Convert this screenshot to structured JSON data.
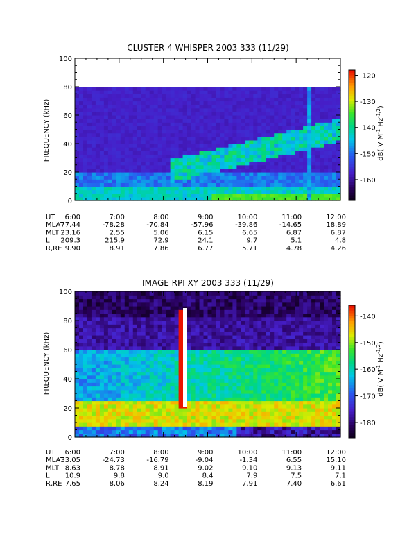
{
  "chart_data": [
    {
      "type": "heatmap",
      "title": "CLUSTER 4 WHISPER 2003 333 (11/29)",
      "ylabel": "FREQUENCY (kHz)",
      "ylim": [
        0,
        100
      ],
      "y_ticks": [
        "0",
        "20",
        "40",
        "60",
        "80",
        "100"
      ],
      "x_ticks": [
        "6:00",
        "7:00",
        "8:00",
        "9:00",
        "10:00",
        "11:00",
        "12:00"
      ],
      "colorbar": {
        "label": "dB( V M",
        "sup1": "-1",
        "mid": " Hz",
        "sup2": "-1/2",
        "end": ")",
        "range": [
          -168,
          -118
        ],
        "ticks": [
          "-120",
          "-130",
          "-140",
          "-150",
          "-160"
        ]
      },
      "data_upper_freq_khz": 80,
      "ephemeris": [
        {
          "label": "UT",
          "values": [
            "6:00",
            "7:00",
            "8:00",
            "9:00",
            "10:00",
            "11:00",
            "12:00"
          ]
        },
        {
          "label": "MLAT",
          "values": [
            "-77.44",
            "-78.28",
            "-70.84",
            "-57.96",
            "-39.86",
            "-14.65",
            "18.89"
          ]
        },
        {
          "label": "MLT",
          "values": [
            "23.16",
            "2.55",
            "5.06",
            "6.15",
            "6.65",
            "6.87",
            "6.87"
          ]
        },
        {
          "label": "L",
          "values": [
            "209.3",
            "215.9",
            "72.9",
            "24.1",
            "9.7",
            "5.1",
            "4.8"
          ]
        },
        {
          "label": "R,RE",
          "values": [
            "9.90",
            "8.91",
            "7.86",
            "6.77",
            "5.71",
            "4.78",
            "4.26"
          ]
        }
      ]
    },
    {
      "type": "heatmap",
      "title": "IMAGE RPI XY 2003 333 (11/29)",
      "ylabel": "FREQUENCY (kHz)",
      "ylim": [
        0,
        100
      ],
      "y_ticks": [
        "0",
        "20",
        "40",
        "60",
        "80",
        "100"
      ],
      "x_ticks": [
        "6:00",
        "7:00",
        "8:00",
        "9:00",
        "10:00",
        "11:00",
        "12:00"
      ],
      "colorbar": {
        "label": "dB( V M",
        "sup1": "-1",
        "mid": " Hz",
        "sup2": "-1/2",
        "end": ")",
        "range": [
          -186,
          -136
        ],
        "ticks": [
          "-140",
          "-150",
          "-160",
          "-170",
          "-180"
        ]
      },
      "ephemeris": [
        {
          "label": "UT",
          "values": [
            "6:00",
            "7:00",
            "8:00",
            "9:00",
            "10:00",
            "11:00",
            "12:00"
          ]
        },
        {
          "label": "MLAT",
          "values": [
            "-33.05",
            "-24.73",
            "-16.79",
            "-9.04",
            "-1.34",
            "6.55",
            "15.10"
          ]
        },
        {
          "label": "MLT",
          "values": [
            "8.63",
            "8.78",
            "8.91",
            "9.02",
            "9.10",
            "9.13",
            "9.11"
          ]
        },
        {
          "label": "L",
          "values": [
            "10.9",
            "9.8",
            "9.0",
            "8.4",
            "7.9",
            "7.5",
            "7.1"
          ]
        },
        {
          "label": "R,RE",
          "values": [
            "7.65",
            "8.06",
            "8.24",
            "8.19",
            "7.91",
            "7.40",
            "6.61"
          ]
        }
      ]
    }
  ]
}
